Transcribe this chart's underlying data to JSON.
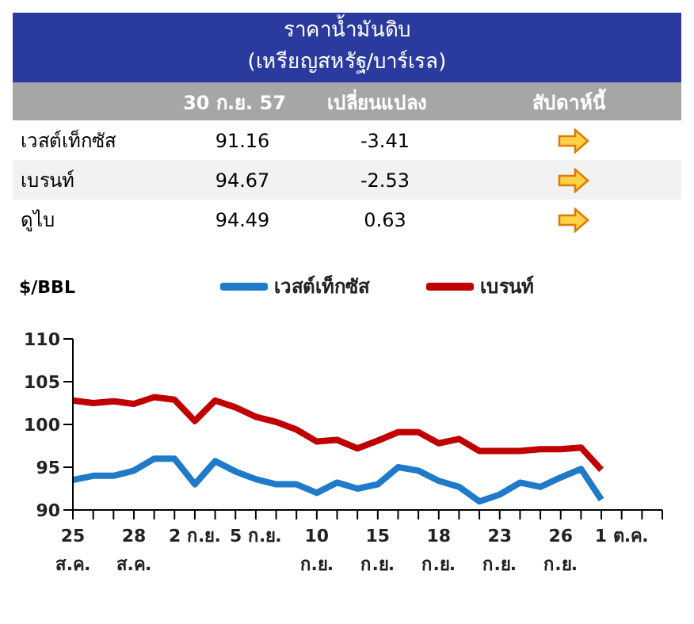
{
  "chart_data": [
    {
      "type": "other",
      "title": "ราคาน้ำมันดิบ",
      "subtitle": "(เหรียญสหรัฐ/บาร์เรล)",
      "categories": [
        "เวสต์เท็กซัส",
        "เบรนท์",
        "ดูไบ"
      ],
      "annotations": [
        "30 ก.ย. 57",
        "เปลี่ยนแปลง",
        "สัปดาห์นี้",
        "91.16",
        "-3.41",
        "94.67",
        "-2.53",
        "94.49",
        "0.63"
      ]
    },
    {
      "type": "line",
      "ylabel": "$/BBL",
      "ylim": [
        90,
        110
      ],
      "yticks": [
        90,
        95,
        100,
        105,
        110
      ],
      "grid": false,
      "legend": "top",
      "marker": "none",
      "line_style": "solid",
      "categories": [
        "25\nส.ค.",
        null,
        null,
        "28\nส.ค.",
        null,
        null,
        "2 ก.ย.",
        null,
        null,
        "5 ก.ย.",
        null,
        null,
        "10\nก.ย.",
        null,
        null,
        "15\nก.ย.",
        null,
        null,
        "18\nก.ย.",
        null,
        null,
        "23\nก.ย.",
        null,
        null,
        "26\nก.ย.",
        null,
        null,
        "1 ต.ค.",
        null,
        null
      ],
      "series": [
        {
          "name": "เวสต์เท็กซัส",
          "color": "#1f7ac9",
          "values": [
            93.5,
            94.0,
            94.0,
            94.6,
            96.0,
            96.0,
            93.0,
            95.7,
            94.5,
            93.6,
            93.0,
            93.0,
            92.0,
            93.2,
            92.5,
            93.0,
            95.0,
            94.6,
            93.4,
            92.7,
            91.0,
            91.8,
            93.2,
            92.7,
            93.8,
            94.8,
            91.2,
            null,
            null,
            null
          ]
        },
        {
          "name": "เบรนท์",
          "color": "#c00000",
          "values": [
            102.8,
            102.5,
            102.7,
            102.4,
            103.2,
            102.9,
            100.4,
            102.8,
            102.0,
            100.9,
            100.3,
            99.4,
            98.0,
            98.2,
            97.2,
            98.1,
            99.1,
            99.1,
            97.8,
            98.3,
            96.9,
            96.9,
            96.9,
            97.1,
            97.1,
            97.3,
            94.7,
            null,
            null,
            null
          ]
        }
      ]
    }
  ]
}
